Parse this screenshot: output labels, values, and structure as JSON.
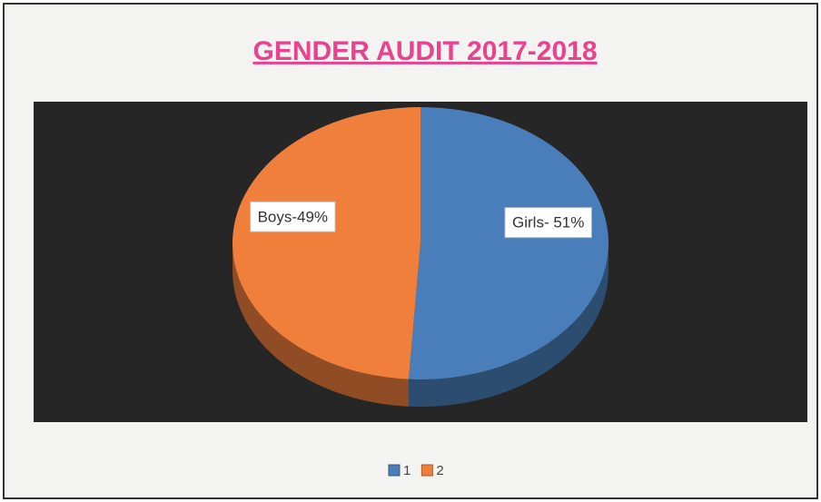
{
  "chart_data": {
    "type": "pie",
    "title": "GENDER AUDIT 2017-2018",
    "categories": [
      "1",
      "2"
    ],
    "values": [
      51,
      49
    ],
    "value_labels": [
      "Girls- 51%",
      "Boys-49%"
    ],
    "colors": [
      "#4a7ebb",
      "#f07f3c"
    ],
    "legend": "bottom"
  }
}
